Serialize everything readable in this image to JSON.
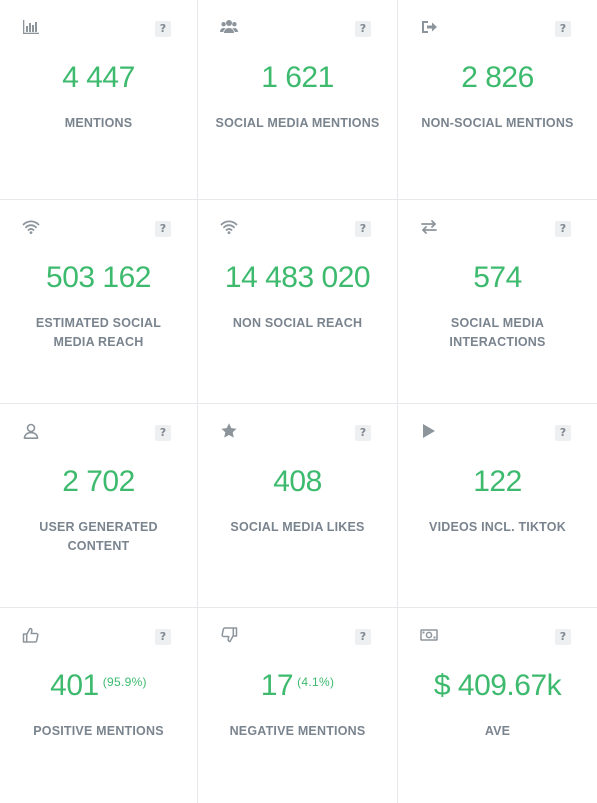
{
  "colors": {
    "value": "#3dba6e",
    "label": "#7a848e",
    "icon": "#8d959c",
    "divider": "#e6e8eb"
  },
  "help_label": "?",
  "cards": [
    {
      "icon": "bar-chart-icon",
      "value": "4 447",
      "label": "MENTIONS"
    },
    {
      "icon": "users-icon",
      "value": "1 621",
      "label": "SOCIAL MEDIA MENTIONS"
    },
    {
      "icon": "sign-out-icon",
      "value": "2 826",
      "label": "NON-SOCIAL MENTIONS"
    },
    {
      "icon": "wifi-icon",
      "value": "503 162",
      "label": "ESTIMATED SOCIAL MEDIA REACH"
    },
    {
      "icon": "wifi-icon",
      "value": "14 483 020",
      "label": "NON SOCIAL REACH"
    },
    {
      "icon": "exchange-icon",
      "value": "574",
      "label": "SOCIAL MEDIA INTERACTIONS"
    },
    {
      "icon": "user-icon",
      "value": "2 702",
      "label": "USER GENERATED CONTENT"
    },
    {
      "icon": "star-icon",
      "value": "408",
      "label": "SOCIAL MEDIA LIKES"
    },
    {
      "icon": "play-icon",
      "value": "122",
      "label": "VIDEOS INCL. TIKTOK"
    },
    {
      "icon": "thumbs-up-icon",
      "value": "401",
      "percent": "(95.9%)",
      "label": "POSITIVE MENTIONS"
    },
    {
      "icon": "thumbs-down-icon",
      "value": "17",
      "percent": "(4.1%)",
      "label": "NEGATIVE MENTIONS"
    },
    {
      "icon": "money-icon",
      "value": "$ 409.67k",
      "label": "AVE"
    }
  ]
}
